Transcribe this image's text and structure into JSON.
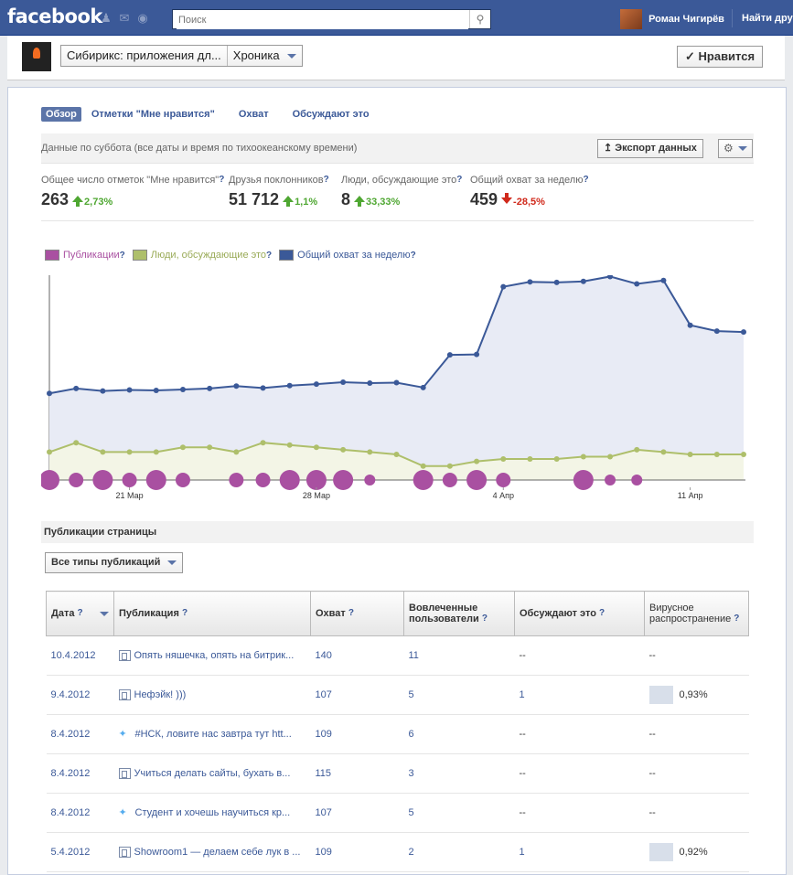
{
  "topbar": {
    "logo": "facebook",
    "search_placeholder": "Поиск",
    "user_name": "Роман Чигирёв",
    "find_friends": "Найти дру"
  },
  "pagebar": {
    "page_name": "Сибирикс: приложения дл...",
    "view": "Хроника",
    "like_label": "✓ Нравится"
  },
  "tabs": [
    "Обзор",
    "Отметки \"Мне нравится\"",
    "Охват",
    "Обсуждают это"
  ],
  "info": {
    "text": "Данные по суббота (все даты и время по тихоокеанскому времени)",
    "export_label": "Экспорт данных"
  },
  "stats": [
    {
      "label": "Общее число отметок \"Мне нравится\"",
      "value": "263",
      "change": "2,73%",
      "direction": "up"
    },
    {
      "label": "Друзья поклонников",
      "value": "51 712",
      "change": "1,1%",
      "direction": "up"
    },
    {
      "label": "Люди, обсуждающие это",
      "value": "8",
      "change": "33,33%",
      "direction": "up"
    },
    {
      "label": "Общий охват за неделю",
      "value": "459",
      "change": "-28,5%",
      "direction": "down"
    }
  ],
  "legend": [
    {
      "name": "Публикации",
      "color": "#a950a1",
      "text_color": "#a950a1"
    },
    {
      "name": "Люди, обсуждающие это",
      "color": "#aebf6b",
      "text_color": "#9aab58"
    },
    {
      "name": "Общий охват за неделю",
      "color": "#3b5998",
      "text_color": "#3b5998"
    }
  ],
  "chart_data": {
    "type": "line",
    "x_ticks": [
      "21 Мар",
      "28 Мар",
      "4 Апр",
      "11 Апр"
    ],
    "series": [
      {
        "name": "Общий охват за неделю",
        "values": [
          408,
          418,
          413,
          415,
          414,
          416,
          418,
          423,
          419,
          424,
          427,
          431,
          429,
          430,
          420,
          487,
          488,
          627,
          637,
          636,
          638,
          648,
          633,
          640,
          548,
          536,
          534
        ]
      },
      {
        "name": "Люди, обсуждающие это",
        "values": [
          6,
          8,
          6,
          6,
          6,
          7,
          7,
          6,
          8,
          7.5,
          7,
          6.5,
          6,
          5.5,
          3,
          3,
          4,
          4.5,
          4.5,
          4.5,
          5,
          5,
          6.5,
          6,
          5.5,
          5.5,
          5.5
        ]
      },
      {
        "name": "Публикации",
        "values": [
          3,
          2,
          3,
          2,
          3,
          2,
          0,
          2,
          2,
          3,
          3,
          3,
          1,
          0,
          3,
          2,
          3,
          2,
          0,
          0,
          3,
          1,
          1,
          0,
          0,
          0,
          0
        ]
      }
    ]
  },
  "section_title": "Публикации страницы",
  "filter_label": "Все типы публикаций",
  "table": {
    "headers": [
      "Дата",
      "Публикация",
      "Охват",
      "Вовлеченные пользователи",
      "Обсуждают это",
      "Вирусное распространение"
    ],
    "rows": [
      {
        "date": "10.4.2012",
        "type": "status",
        "text": "Опять няшечка, опять на битрик...",
        "reach": "140",
        "engaged": "11",
        "talking": "--",
        "viral": "--",
        "viral_fraction": 0
      },
      {
        "date": "9.4.2012",
        "type": "status",
        "text": "Нефэйк! )))",
        "reach": "107",
        "engaged": "5",
        "talking": "1",
        "viral": "0,93%",
        "viral_fraction": 0.0093
      },
      {
        "date": "8.4.2012",
        "type": "twitter",
        "text": "#НСК, ловите нас завтра тут htt...",
        "reach": "109",
        "engaged": "6",
        "talking": "--",
        "viral": "--",
        "viral_fraction": 0
      },
      {
        "date": "8.4.2012",
        "type": "status",
        "text": "Учиться делать сайты, бухать в...",
        "reach": "115",
        "engaged": "3",
        "talking": "--",
        "viral": "--",
        "viral_fraction": 0
      },
      {
        "date": "8.4.2012",
        "type": "twitter",
        "text": "Студент и хочешь научиться кр...",
        "reach": "107",
        "engaged": "5",
        "talking": "--",
        "viral": "--",
        "viral_fraction": 0
      },
      {
        "date": "5.4.2012",
        "type": "status",
        "text": "Showroom1 — делаем себе лук в ...",
        "reach": "109",
        "engaged": "2",
        "talking": "1",
        "viral": "0,92%",
        "viral_fraction": 0.0092
      }
    ]
  }
}
